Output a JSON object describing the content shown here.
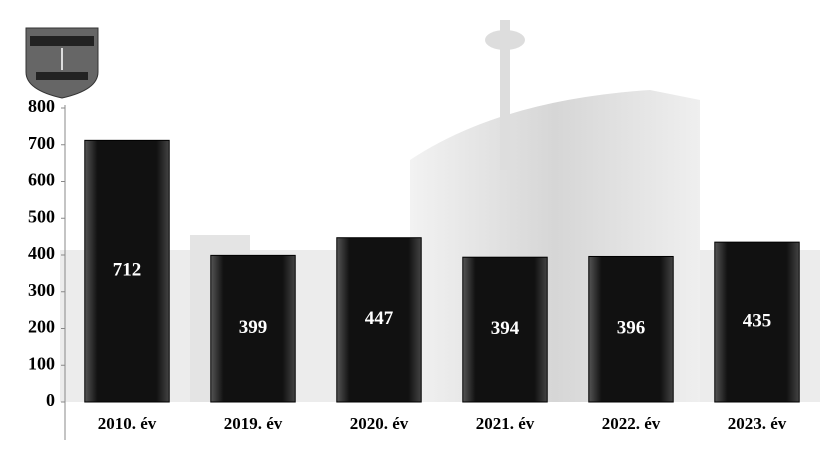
{
  "chart_data": {
    "type": "bar",
    "categories": [
      "2010. év",
      "2019. év",
      "2020. év",
      "2021. év",
      "2022. év",
      "2023. év"
    ],
    "values": [
      712,
      399,
      447,
      394,
      396,
      435
    ],
    "color": "#1a1a1a",
    "ylim": [
      0,
      800
    ],
    "yticks": [
      0,
      100,
      200,
      300,
      400,
      500,
      600,
      700,
      800
    ]
  }
}
